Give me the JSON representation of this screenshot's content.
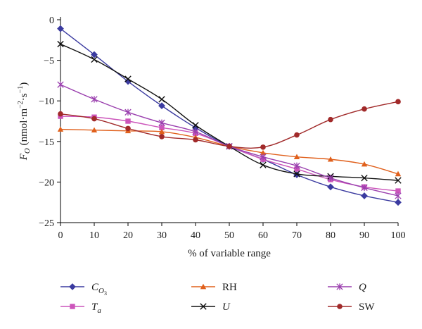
{
  "chart_data": {
    "type": "line",
    "x": [
      0,
      10,
      20,
      30,
      40,
      50,
      60,
      70,
      80,
      90,
      100
    ],
    "xlabel": "% of variable range",
    "ylabel": {
      "main": "F",
      "sub": "O",
      "units": " (nmol·m",
      "exp1": "−2",
      "mid": "·s",
      "exp2": "−1",
      "close": ")"
    },
    "xlim": [
      0,
      100
    ],
    "ylim": [
      -25,
      0
    ],
    "xticks": [
      "0",
      "10",
      "20",
      "30",
      "40",
      "50",
      "60",
      "70",
      "80",
      "90",
      "100"
    ],
    "yticks": [
      "0",
      "−5",
      "−10",
      "−15",
      "−20",
      "−25"
    ],
    "legend_position": "bottom",
    "series": [
      {
        "name": "C",
        "sub": "O",
        "subsub": "3",
        "italic": true,
        "marker": "diamond",
        "color": "#3b3ba0",
        "values": [
          -1.1,
          -4.3,
          -7.6,
          -10.6,
          -13.3,
          -15.6,
          -17.2,
          -19.1,
          -20.6,
          -21.7,
          -22.5
        ]
      },
      {
        "name": "T",
        "sub": "a",
        "italic": true,
        "marker": "square",
        "color": "#cc55bb",
        "values": [
          -11.9,
          -12.0,
          -12.5,
          -13.3,
          -14.0,
          -15.6,
          -17.2,
          -18.4,
          -19.7,
          -20.6,
          -21.1
        ]
      },
      {
        "name": "RH",
        "italic": false,
        "marker": "triangle",
        "color": "#e0601c",
        "values": [
          -13.5,
          -13.6,
          -13.7,
          -13.8,
          -14.5,
          -15.6,
          -16.4,
          -16.9,
          -17.2,
          -17.8,
          -19.0
        ]
      },
      {
        "name": "U",
        "italic": true,
        "marker": "x",
        "color": "#111111",
        "values": [
          -3.0,
          -4.9,
          -7.3,
          -9.8,
          -13.0,
          -15.6,
          -17.9,
          -19.0,
          -19.3,
          -19.5,
          -19.8
        ]
      },
      {
        "name": "Q",
        "italic": true,
        "marker": "asterisk",
        "color": "#9a3fae",
        "values": [
          -8.0,
          -9.8,
          -11.4,
          -12.7,
          -13.8,
          -15.6,
          -16.9,
          -18.0,
          -19.5,
          -20.7,
          -21.7
        ]
      },
      {
        "name": "SW",
        "italic": false,
        "marker": "circle",
        "color": "#a12a2a",
        "values": [
          -11.6,
          -12.2,
          -13.4,
          -14.4,
          -14.8,
          -15.6,
          -15.7,
          -14.2,
          -12.3,
          -11.0,
          -10.1
        ]
      }
    ]
  }
}
